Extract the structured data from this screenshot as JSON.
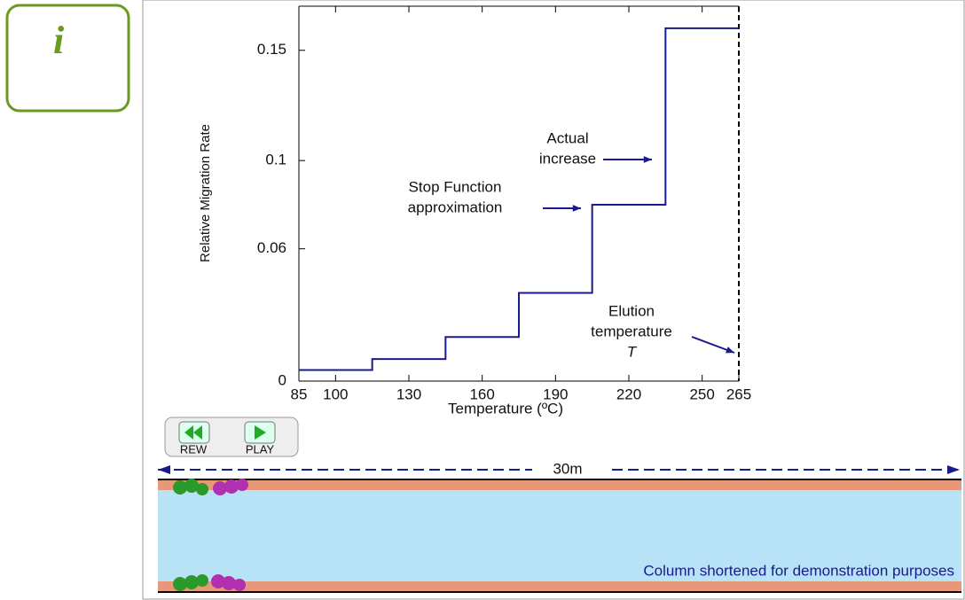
{
  "info_icon": "i",
  "chart_data": {
    "type": "line",
    "x_label": "Temperature (ºC)",
    "y_label": "Relative Migration Rate",
    "x": [
      85,
      115,
      115,
      145,
      145,
      175,
      175,
      205,
      205,
      235,
      235,
      265
    ],
    "series": [
      {
        "color": "#1a1a8c",
        "values": [
          0.005,
          0.005,
          0.01,
          0.01,
          0.02,
          0.02,
          0.04,
          0.04,
          0.08,
          0.08,
          0.16,
          0.16
        ]
      }
    ],
    "xlim": [
      85,
      265
    ],
    "xticks": [
      85,
      100,
      130,
      160,
      190,
      220,
      250,
      265
    ],
    "ylim": [
      0,
      0.17
    ],
    "yticks": [
      0,
      0.06,
      0.1,
      0.15
    ],
    "annotations": [
      {
        "lines": [
          "Actual",
          "increase"
        ]
      },
      {
        "lines": [
          "Stop Function",
          "approximation"
        ]
      },
      {
        "lines": [
          "Elution",
          "temperature",
          "T"
        ]
      }
    ]
  },
  "controls": {
    "rewind": "REW",
    "play": "PLAY"
  },
  "column": {
    "length": "30m",
    "note": "Column shortened for demonstration purposes"
  }
}
